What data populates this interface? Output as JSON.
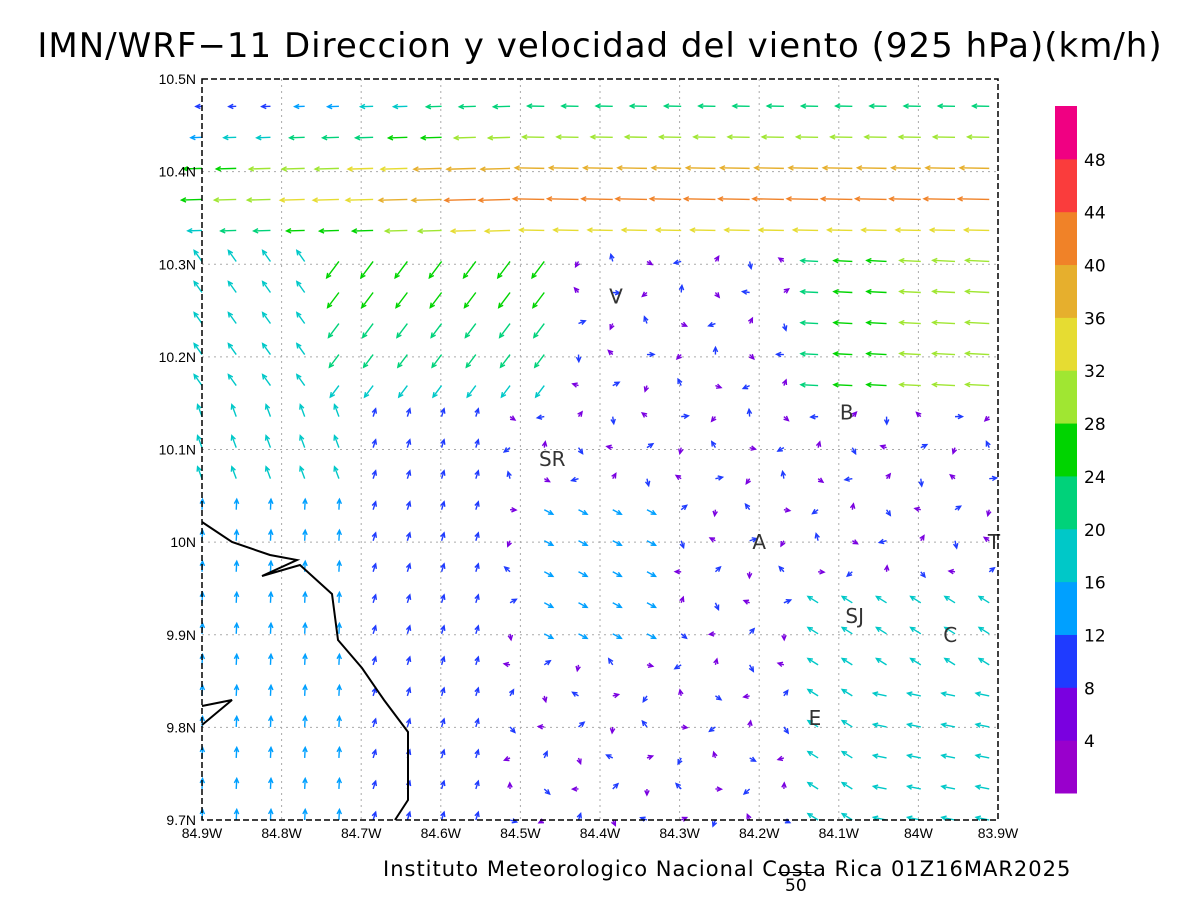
{
  "title": "IMN/WRF−11 Direccion y velocidad del viento (925 hPa)(km/h)",
  "footer": "Instituto Meteorologico Nacional Costa Rica 01Z16MAR2025",
  "reference_vector": {
    "label": "50",
    "speed": 50
  },
  "map": {
    "lon_range": [
      -84.9,
      -83.9
    ],
    "lat_range": [
      9.7,
      10.5
    ],
    "x_ticks": [
      "84.9W",
      "84.8W",
      "84.7W",
      "84.6W",
      "84.5W",
      "84.4W",
      "84.3W",
      "84.2W",
      "84.1W",
      "84W",
      "83.9W"
    ],
    "y_ticks": [
      "9.7N",
      "9.8N",
      "9.9N",
      "10N",
      "10.1N",
      "10.2N",
      "10.3N",
      "10.4N",
      "10.5N"
    ],
    "grid": true,
    "stations": [
      {
        "label": "V",
        "lon": -84.38,
        "lat": 10.265
      },
      {
        "label": "SR",
        "lon": -84.46,
        "lat": 10.09
      },
      {
        "label": "B",
        "lon": -84.09,
        "lat": 10.14
      },
      {
        "label": "A",
        "lon": -84.2,
        "lat": 10.0
      },
      {
        "label": "SJ",
        "lon": -84.08,
        "lat": 9.92
      },
      {
        "label": "C",
        "lon": -83.96,
        "lat": 9.9
      },
      {
        "label": "E",
        "lon": -84.13,
        "lat": 9.81
      },
      {
        "label": "T",
        "lon": -83.905,
        "lat": 10.0
      }
    ]
  },
  "colorbar": {
    "labels": [
      "4",
      "8",
      "12",
      "16",
      "20",
      "24",
      "28",
      "32",
      "36",
      "40",
      "44",
      "48"
    ],
    "colors": [
      "#9900cc",
      "#7a00e0",
      "#1f3bff",
      "#00a0ff",
      "#00c8c8",
      "#00d27a",
      "#00d400",
      "#a0e632",
      "#e6dc32",
      "#e6af2d",
      "#f08228",
      "#fa3c3c",
      "#f00082"
    ]
  }
}
